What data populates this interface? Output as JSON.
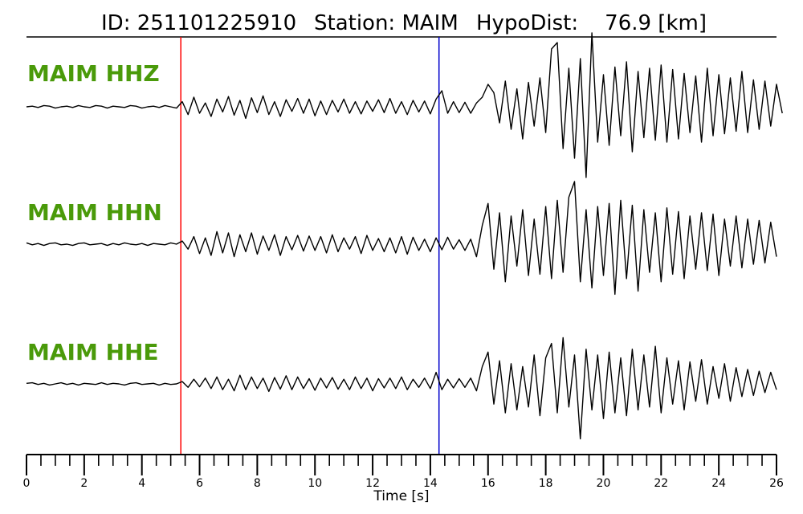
{
  "title": {
    "id_text": "ID: 251101225910",
    "station_text": "Station: MAIM",
    "hypodist_text": "HypoDist:    76.9 [km]"
  },
  "chart_data": {
    "type": "line",
    "xlabel": "Time [s]",
    "xlim": [
      0,
      26
    ],
    "x_major_ticks": [
      0,
      2,
      4,
      6,
      8,
      10,
      12,
      14,
      16,
      18,
      20,
      22,
      24,
      26
    ],
    "x_minor_tick_step": 0.5,
    "grid": false,
    "markers": [
      {
        "name": "P pick",
        "time": 5.35,
        "color": "#ff0000"
      },
      {
        "name": "S pick",
        "time": 14.3,
        "color": "#0000cc"
      }
    ],
    "label_color": "#4a9a0a",
    "trace_color": "#000000",
    "series": [
      {
        "name": "MAIM HHZ",
        "t_step": 0.2,
        "values": [
          0,
          0.01,
          -0.01,
          0.02,
          0.01,
          -0.02,
          0,
          0.01,
          -0.01,
          0.02,
          0,
          -0.01,
          0.02,
          0.01,
          -0.02,
          0.01,
          0,
          -0.01,
          0.02,
          0.01,
          -0.02,
          0,
          0.01,
          -0.01,
          0.02,
          0,
          -0.02,
          0.08,
          -0.12,
          0.15,
          -0.1,
          0.06,
          -0.15,
          0.12,
          -0.08,
          0.16,
          -0.13,
          0.1,
          -0.18,
          0.14,
          -0.09,
          0.17,
          -0.12,
          0.08,
          -0.15,
          0.11,
          -0.07,
          0.13,
          -0.1,
          0.12,
          -0.14,
          0.09,
          -0.12,
          0.1,
          -0.08,
          0.12,
          -0.1,
          0.08,
          -0.11,
          0.09,
          -0.07,
          0.11,
          -0.09,
          0.13,
          -0.1,
          0.08,
          -0.12,
          0.1,
          -0.08,
          0.09,
          -0.11,
          0.12,
          0.25,
          -0.1,
          0.08,
          -0.09,
          0.07,
          -0.1,
          0.06,
          0.15,
          0.35,
          0.22,
          -0.25,
          0.4,
          -0.35,
          0.28,
          -0.5,
          0.38,
          -0.3,
          0.45,
          -0.4,
          0.9,
          1.0,
          -0.65,
          0.6,
          -0.8,
          0.75,
          -1.1,
          1.15,
          -0.55,
          0.5,
          -0.6,
          0.62,
          -0.45,
          0.7,
          -0.7,
          0.55,
          -0.48,
          0.6,
          -0.52,
          0.65,
          -0.55,
          0.58,
          -0.5,
          0.52,
          -0.4,
          0.48,
          -0.55,
          0.6,
          -0.45,
          0.5,
          -0.42,
          0.45,
          -0.38,
          0.55,
          -0.4,
          0.42,
          -0.35,
          0.4,
          -0.3,
          0.35,
          -0.1
        ]
      },
      {
        "name": "MAIM HHN",
        "t_step": 0.2,
        "values": [
          0.02,
          -0.01,
          0.01,
          -0.02,
          0.01,
          0.02,
          -0.01,
          0,
          -0.02,
          0.01,
          0.02,
          -0.01,
          0,
          0.01,
          -0.02,
          0.01,
          -0.01,
          0.02,
          0,
          -0.01,
          0.01,
          -0.02,
          0.01,
          0,
          -0.01,
          0.02,
          0,
          0.05,
          -0.08,
          0.12,
          -0.15,
          0.1,
          -0.18,
          0.2,
          -0.14,
          0.18,
          -0.2,
          0.15,
          -0.12,
          0.18,
          -0.16,
          0.13,
          -0.1,
          0.15,
          -0.18,
          0.12,
          -0.09,
          0.14,
          -0.11,
          0.13,
          -0.1,
          0.12,
          -0.14,
          0.15,
          -0.12,
          0.1,
          -0.08,
          0.12,
          -0.15,
          0.14,
          -0.1,
          0.09,
          -0.12,
          0.1,
          -0.14,
          0.12,
          -0.16,
          0.11,
          -0.1,
          0.08,
          -0.12,
          0.1,
          -0.09,
          0.11,
          -0.08,
          0.07,
          -0.1,
          0.08,
          -0.2,
          0.3,
          0.65,
          -0.4,
          0.5,
          -0.6,
          0.45,
          -0.35,
          0.55,
          -0.5,
          0.4,
          -0.48,
          0.6,
          -0.55,
          0.7,
          -0.45,
          0.75,
          1.0,
          -0.6,
          0.55,
          -0.7,
          0.6,
          -0.5,
          0.65,
          -0.8,
          0.7,
          -0.55,
          0.62,
          -0.75,
          0.55,
          -0.45,
          0.5,
          -0.6,
          0.58,
          -0.48,
          0.52,
          -0.55,
          0.45,
          -0.4,
          0.5,
          -0.42,
          0.48,
          -0.5,
          0.4,
          -0.35,
          0.45,
          -0.38,
          0.4,
          -0.32,
          0.38,
          -0.3,
          0.35,
          -0.2
        ]
      },
      {
        "name": "MAIM HHE",
        "t_step": 0.2,
        "values": [
          0.01,
          0.02,
          -0.01,
          0.01,
          -0.02,
          0,
          0.02,
          -0.01,
          0.01,
          -0.02,
          0.01,
          0,
          -0.01,
          0.02,
          -0.01,
          0.01,
          0,
          -0.02,
          0.01,
          0.02,
          -0.01,
          0,
          0.01,
          -0.02,
          0.01,
          -0.01,
          0,
          0.04,
          -0.06,
          0.08,
          -0.05,
          0.1,
          -0.08,
          0.12,
          -0.1,
          0.08,
          -0.12,
          0.15,
          -0.1,
          0.12,
          -0.08,
          0.1,
          -0.13,
          0.11,
          -0.09,
          0.14,
          -0.1,
          0.12,
          -0.08,
          0.09,
          -0.11,
          0.1,
          -0.07,
          0.11,
          -0.09,
          0.08,
          -0.1,
          0.12,
          -0.08,
          0.1,
          -0.12,
          0.09,
          -0.07,
          0.1,
          -0.08,
          0.12,
          -0.1,
          0.08,
          -0.06,
          0.1,
          -0.08,
          0.2,
          -0.1,
          0.08,
          -0.07,
          0.09,
          -0.06,
          0.1,
          -0.12,
          0.3,
          0.55,
          -0.35,
          0.4,
          -0.5,
          0.35,
          -0.45,
          0.3,
          -0.4,
          0.5,
          -0.55,
          0.45,
          0.7,
          -0.5,
          0.8,
          -0.4,
          0.5,
          -0.95,
          0.6,
          -0.45,
          0.5,
          -0.6,
          0.55,
          -0.5,
          0.45,
          -0.55,
          0.6,
          -0.45,
          0.5,
          -0.4,
          0.65,
          -0.5,
          0.45,
          -0.35,
          0.4,
          -0.45,
          0.38,
          -0.3,
          0.42,
          -0.35,
          0.3,
          -0.25,
          0.35,
          -0.3,
          0.28,
          -0.22,
          0.25,
          -0.2,
          0.22,
          -0.15,
          0.2,
          -0.1
        ]
      }
    ]
  }
}
